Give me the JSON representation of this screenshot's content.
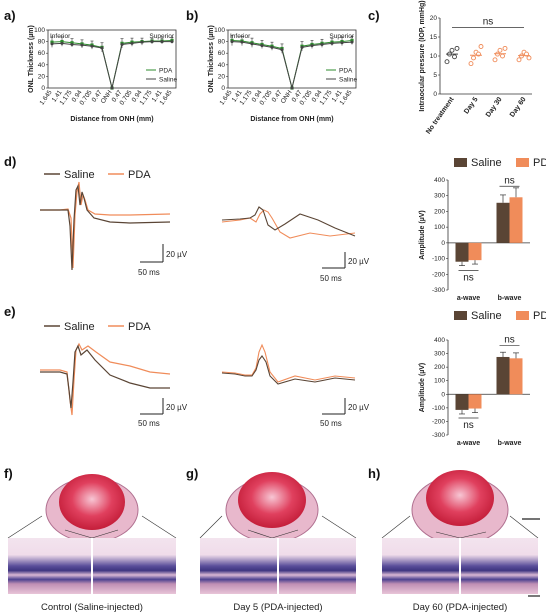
{
  "panel_labels": [
    "a)",
    "b)",
    "c)",
    "d)",
    "e)",
    "f)",
    "g)",
    "h)"
  ],
  "colors": {
    "saline": "#5a4535",
    "pda": "#f08c5a",
    "green": "#2e8b2e",
    "ctrl": "#444444"
  },
  "scale_bars": {
    "d_left": {
      "v": "20 µV",
      "h": "50 ms"
    },
    "d_right": {
      "v": "20 µV",
      "h": "50 ms"
    },
    "e_left": {
      "v": "20 µV",
      "h": "50 ms"
    },
    "e_right": {
      "v": "20 µV",
      "h": "50 ms"
    }
  },
  "erg_legend": {
    "saline": "Saline",
    "pda": "PDA"
  },
  "captions": {
    "f": "Control (Saline-injected)",
    "g": "Day 5 (PDA-injected)",
    "h": "Day 60 (PDA-injected)"
  },
  "chart_data": [
    {
      "id": "a",
      "type": "line",
      "ylabel": "ONL Thickness (µm)",
      "xlabel": "Distance from ONH (mm)",
      "region_left": "Inferior",
      "region_right": "Superior",
      "categories": [
        "1.645",
        "1.41",
        "1.175",
        "0.94",
        "0.705",
        "0.47",
        "ONH",
        "0.47",
        "0.705",
        "0.94",
        "1.175",
        "1.41",
        "1.645"
      ],
      "ylim": [
        0,
        100
      ],
      "yticks": [
        0,
        20,
        40,
        60,
        80,
        100
      ],
      "series": [
        {
          "name": "PDA",
          "color": "#2e8b2e",
          "values": [
            79,
            80,
            78,
            76,
            74,
            70,
            0,
            77,
            79,
            80,
            81,
            81,
            82
          ]
        },
        {
          "name": "Saline",
          "color": "#444444",
          "values": [
            76,
            77,
            75,
            74,
            72,
            69,
            0,
            75,
            77,
            79,
            80,
            80,
            80
          ]
        }
      ],
      "errors": [
        9,
        8,
        7,
        7,
        7,
        8,
        0,
        8,
        7,
        6,
        5,
        5,
        5
      ],
      "legend": "bottom-right"
    },
    {
      "id": "b",
      "type": "line",
      "ylabel": "ONL Thickness (µm)",
      "xlabel": "Distance from ONH (mm)",
      "region_left": "Inferior",
      "region_right": "Superior",
      "categories": [
        "1.645",
        "1.41",
        "1.175",
        "0.94",
        "0.705",
        "0.47",
        "ONH",
        "0.47",
        "0.705",
        "0.94",
        "1.175",
        "1.41",
        "1.645"
      ],
      "ylim": [
        0,
        100
      ],
      "yticks": [
        0,
        20,
        40,
        60,
        80,
        100
      ],
      "series": [
        {
          "name": "PDA",
          "color": "#2e8b2e",
          "values": [
            82,
            81,
            78,
            75,
            72,
            68,
            0,
            72,
            75,
            77,
            79,
            80,
            82
          ]
        },
        {
          "name": "Saline",
          "color": "#444444",
          "values": [
            80,
            79,
            76,
            73,
            70,
            66,
            0,
            70,
            73,
            75,
            77,
            78,
            79
          ]
        }
      ],
      "errors": [
        9,
        8,
        8,
        7,
        7,
        8,
        0,
        8,
        7,
        7,
        6,
        7,
        7
      ],
      "legend": "bottom-right"
    },
    {
      "id": "c",
      "type": "scatter",
      "ylabel": "Intraocular pressure (IOP, mmHg)",
      "categories": [
        "No treatment",
        "Day 5",
        "Day 30",
        "Day 60"
      ],
      "ylim": [
        0,
        20
      ],
      "yticks": [
        0,
        5,
        10,
        15,
        20
      ],
      "points": [
        [
          8.5,
          10.5,
          11.5,
          9.8,
          12.0
        ],
        [
          8.0,
          9.5,
          11.0,
          10.5,
          12.5
        ],
        [
          9.0,
          10.5,
          11.5,
          10.0,
          12.0
        ],
        [
          9.0,
          10.0,
          11.0,
          10.5,
          9.5
        ]
      ],
      "means": [
        10.5,
        10.2,
        10.6,
        10.1
      ],
      "colors": [
        "#444444",
        "#f08c5a",
        "#f08c5a",
        "#f08c5a"
      ],
      "annotation": "ns"
    },
    {
      "id": "d",
      "type": "bar",
      "ylabel": "Amplitude (µV)",
      "categories": [
        "a-wave",
        "b-wave"
      ],
      "ylim": [
        -300,
        400
      ],
      "yticks": [
        -300,
        -200,
        -100,
        0,
        100,
        200,
        300,
        400
      ],
      "series": [
        {
          "name": "Saline",
          "color": "#5a4535",
          "values": [
            -120,
            255
          ],
          "errors": [
            25,
            50
          ]
        },
        {
          "name": "PDA",
          "color": "#f08c5a",
          "values": [
            -110,
            290
          ],
          "errors": [
            25,
            60
          ]
        }
      ],
      "annotations": [
        "ns",
        "ns"
      ],
      "legend": "top"
    },
    {
      "id": "e",
      "type": "bar",
      "ylabel": "Amplitude (µV)",
      "categories": [
        "a-wave",
        "b-wave"
      ],
      "ylim": [
        -300,
        400
      ],
      "yticks": [
        -300,
        -200,
        -100,
        0,
        100,
        200,
        300,
        400
      ],
      "series": [
        {
          "name": "Saline",
          "color": "#5a4535",
          "values": [
            -115,
            275
          ],
          "errors": [
            30,
            35
          ]
        },
        {
          "name": "PDA",
          "color": "#f08c5a",
          "values": [
            -105,
            265
          ],
          "errors": [
            30,
            40
          ]
        }
      ],
      "annotations": [
        "ns",
        "ns"
      ],
      "legend": "top"
    }
  ]
}
